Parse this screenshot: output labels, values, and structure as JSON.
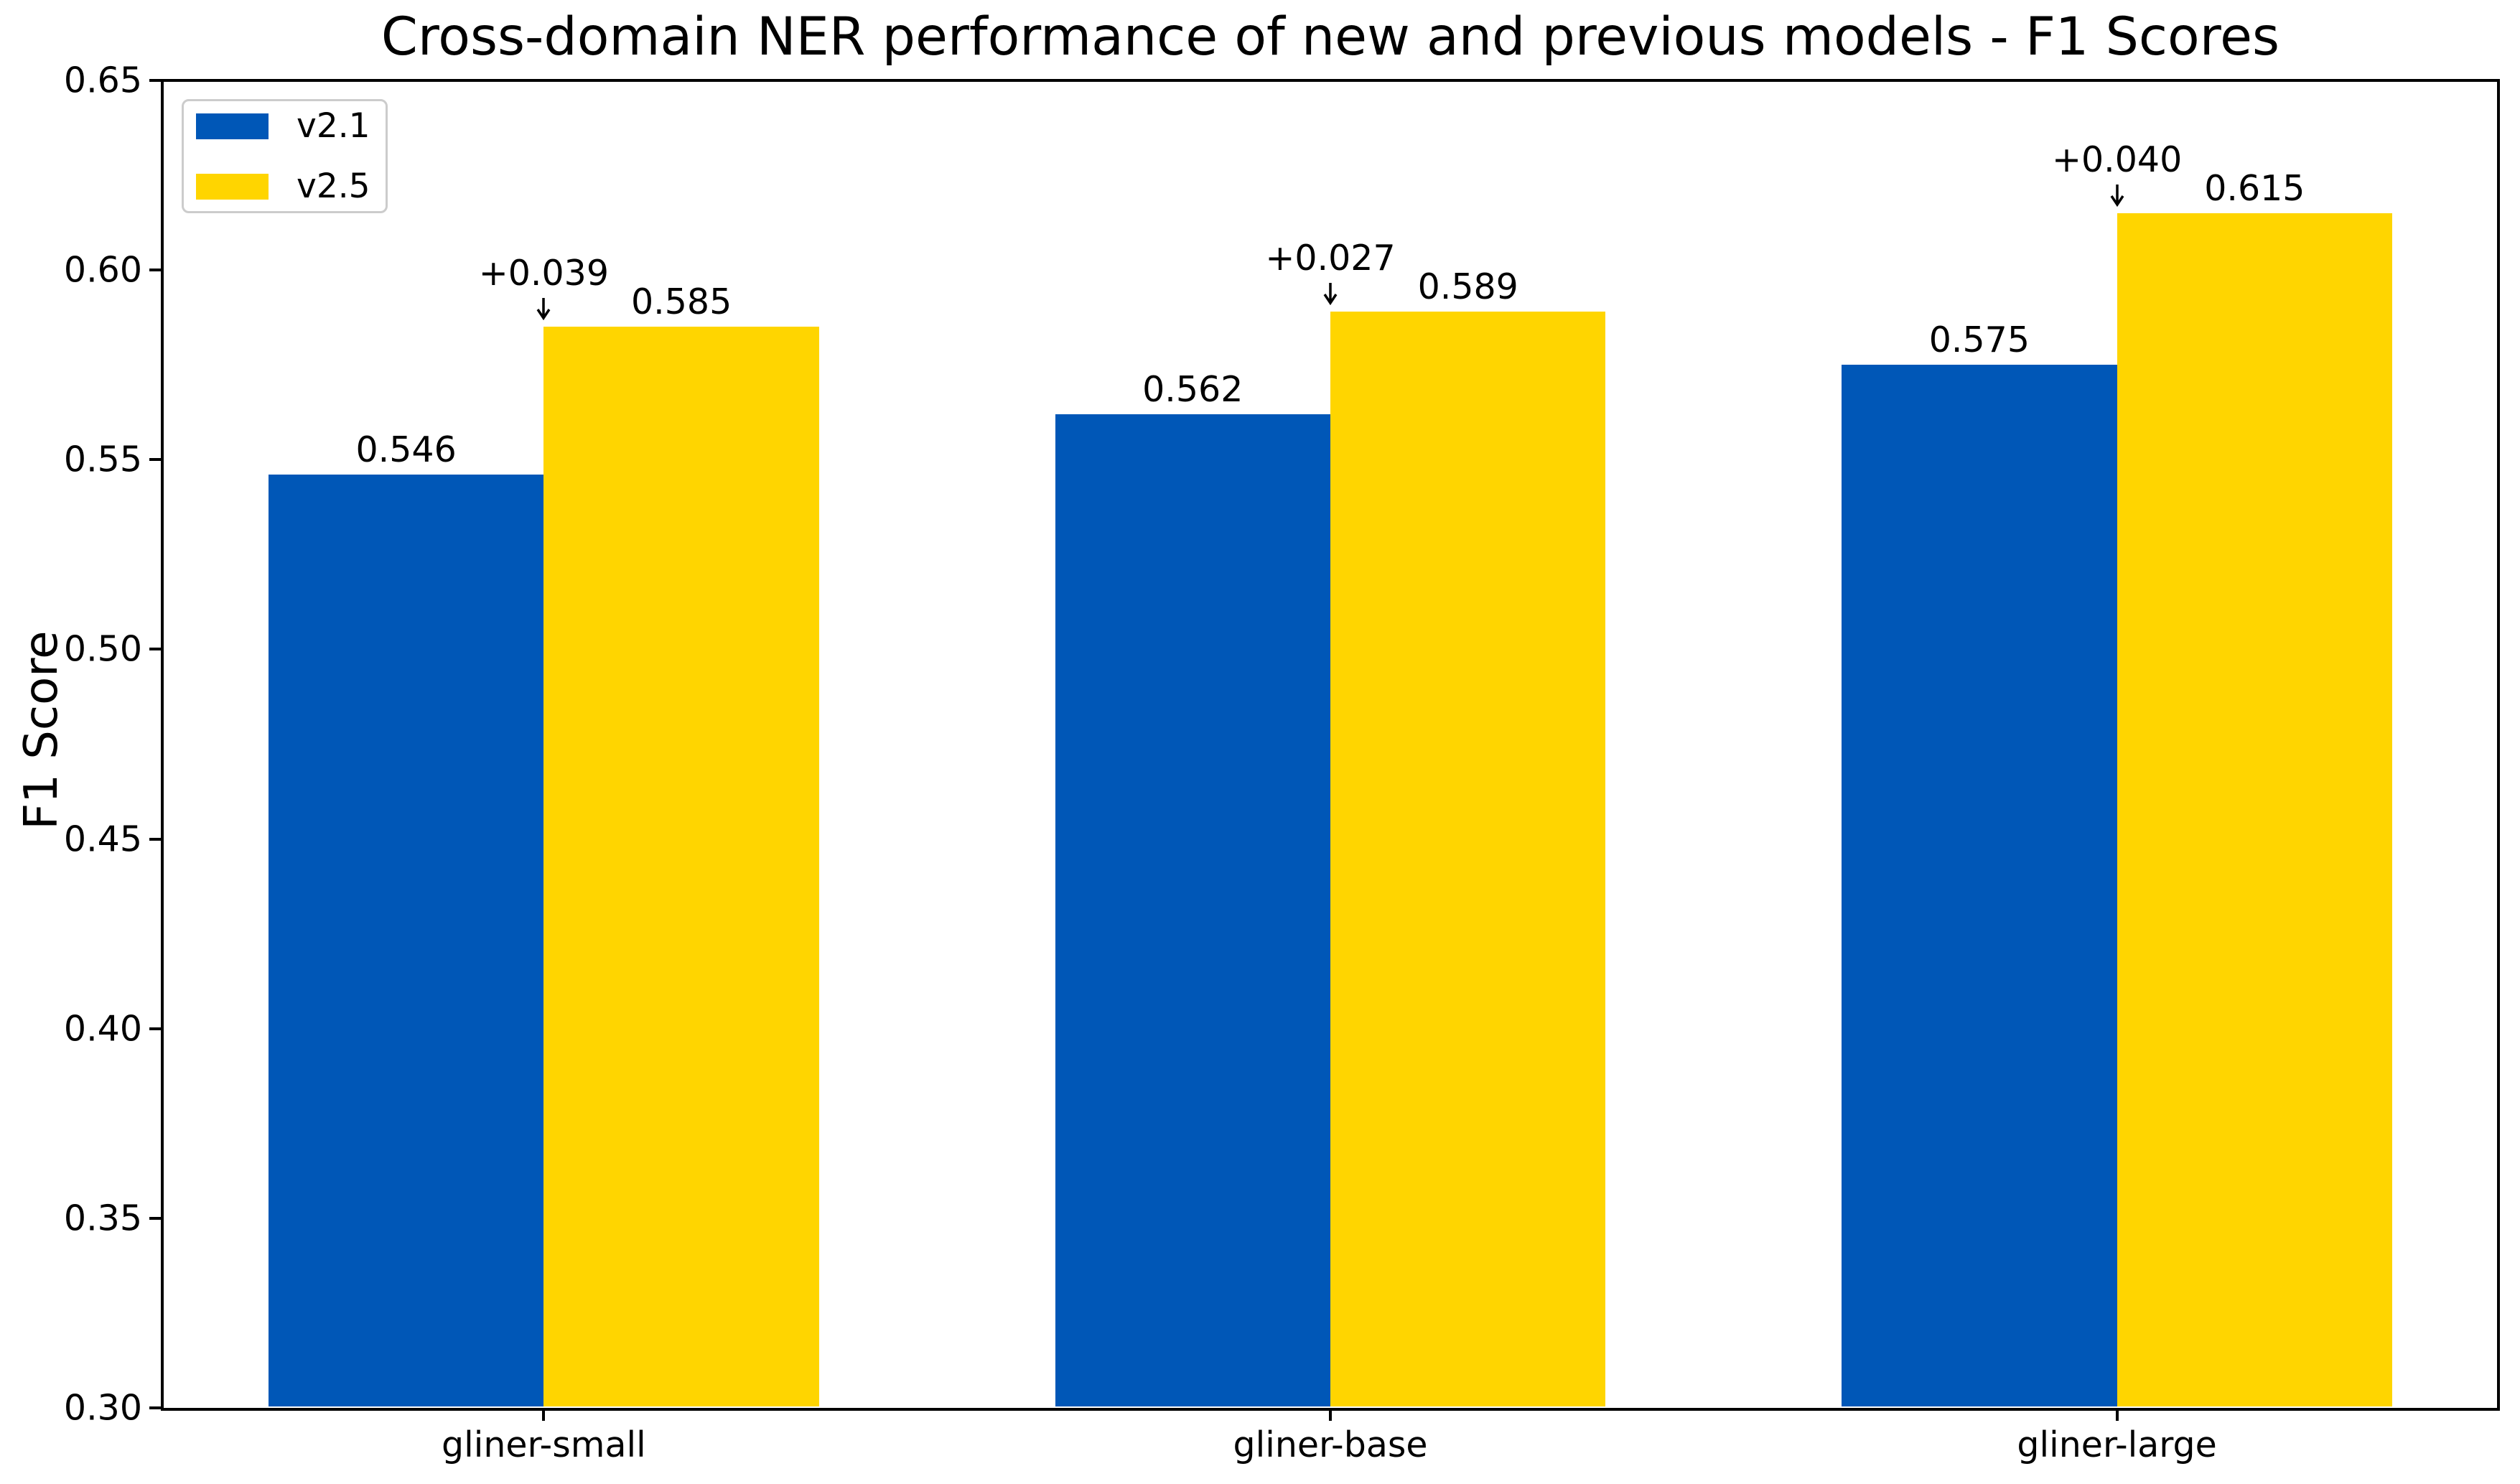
{
  "chart_data": {
    "type": "bar",
    "title": "Cross-domain NER performance of new and previous models - F1 Scores",
    "ylabel": "F1 Score",
    "xlabel": "",
    "categories": [
      "gliner-small",
      "gliner-base",
      "gliner-large"
    ],
    "series": [
      {
        "name": "v2.1",
        "color": "#0057B7",
        "values": [
          0.546,
          0.562,
          0.575
        ],
        "labels": [
          "0.546",
          "0.562",
          "0.575"
        ]
      },
      {
        "name": "v2.5",
        "color": "#FFD500",
        "values": [
          0.585,
          0.589,
          0.615
        ],
        "labels": [
          "0.585",
          "0.589",
          "0.615"
        ]
      }
    ],
    "delta_annotations": [
      "+0.039",
      "+0.027",
      "+0.040"
    ],
    "ylim": [
      0.3,
      0.65
    ],
    "yticks": [
      "0.30",
      "0.35",
      "0.40",
      "0.45",
      "0.50",
      "0.55",
      "0.60",
      "0.65"
    ],
    "xlim": [
      -0.485,
      2.485
    ],
    "bar_width_data_units": 0.35,
    "legend_position": "upper left",
    "grid": false,
    "axis_color": "#000000",
    "background_color": "#ffffff"
  }
}
